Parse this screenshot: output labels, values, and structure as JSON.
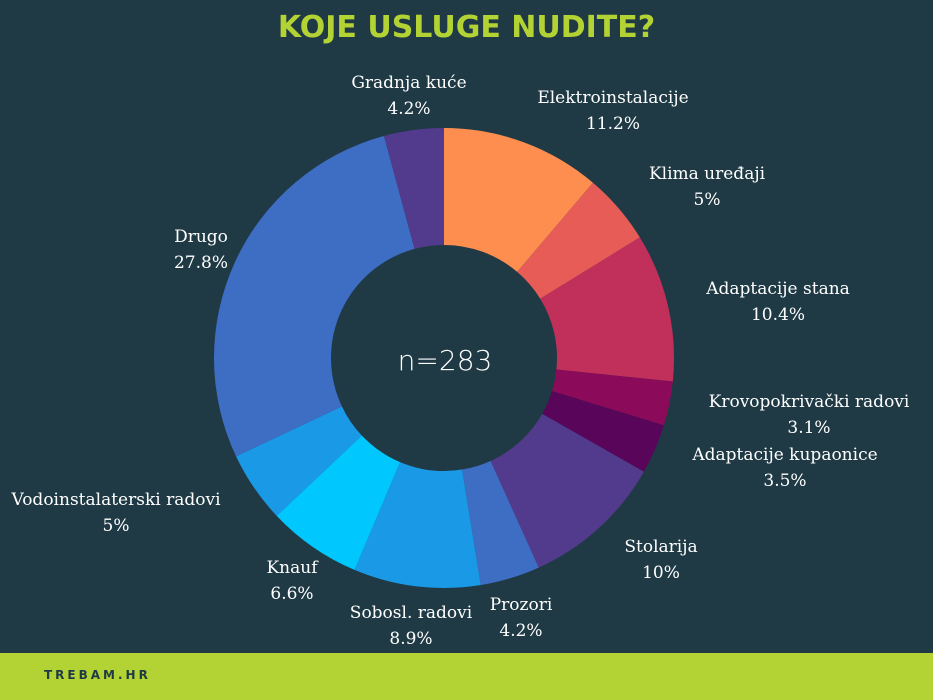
{
  "title": "KOJE USLUGE NUDITE?",
  "brand": "TREBAM.HR",
  "chart_data": {
    "type": "pie",
    "donut": true,
    "center_text": "n=283",
    "slices": [
      {
        "label": "Elektroinstalacije",
        "display": "11.2%",
        "value": 11.2,
        "color": "#fe8e4f"
      },
      {
        "label": "Klima uređaji",
        "display": "5%",
        "value": 5,
        "color": "#e85c58"
      },
      {
        "label": "Adaptacije stana",
        "display": "10.4%",
        "value": 10.4,
        "color": "#c0305a"
      },
      {
        "label": "Krovopokrivački radovi",
        "display": "3.1%",
        "value": 3.1,
        "color": "#8b0a5a"
      },
      {
        "label": "Adaptacije kupaonice",
        "display": "3.5%",
        "value": 3.5,
        "color": "#58055a"
      },
      {
        "label": "Stolarija",
        "display": "10%",
        "value": 10,
        "color": "#523b8c"
      },
      {
        "label": "Prozori",
        "display": "4.2%",
        "value": 4.2,
        "color": "#3e6dc4"
      },
      {
        "label": "Sobosl. radovi",
        "display": "8.9%",
        "value": 8.9,
        "color": "#1a9ae6"
      },
      {
        "label": "Knauf",
        "display": "6.6%",
        "value": 6.6,
        "color": "#00c8ff"
      },
      {
        "label": "Vodoinstalaterski radovi",
        "display": "5%",
        "value": 5,
        "color": "#1a9ae6"
      },
      {
        "label": "Drugo",
        "display": "27.8%",
        "value": 27.8,
        "color": "#3e6dc4"
      },
      {
        "label": "Gradnja kuće",
        "display": "4.2%",
        "value": 4.2,
        "color": "#523b8c"
      }
    ]
  }
}
